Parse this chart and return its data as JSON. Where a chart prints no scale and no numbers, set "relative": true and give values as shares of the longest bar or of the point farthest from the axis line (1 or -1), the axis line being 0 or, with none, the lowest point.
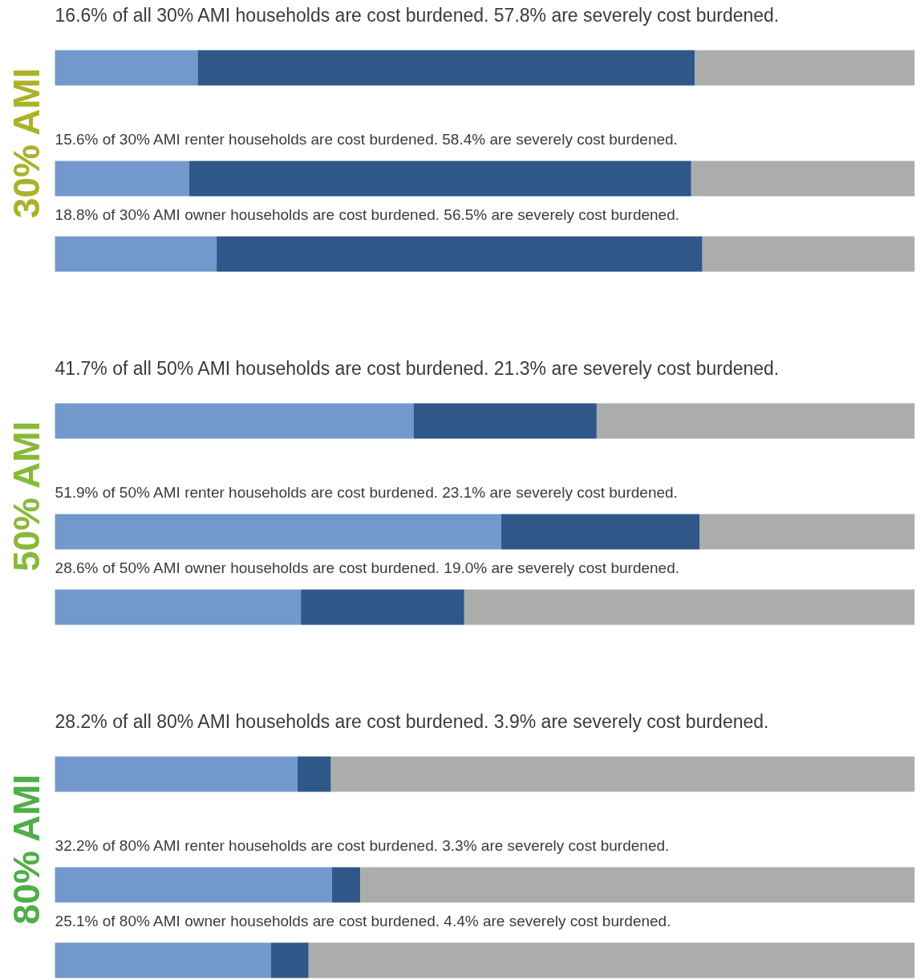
{
  "chart_data": {
    "type": "bar",
    "orientation": "horizontal",
    "stacked": true,
    "relative": true,
    "categories": [
      null,
      null,
      null,
      null,
      null,
      null,
      null,
      null,
      null
    ],
    "series": [
      {
        "color": "#7399cc",
        "values": [
          0.166,
          0.156,
          0.188,
          0.417,
          0.519,
          0.286,
          0.282,
          0.322,
          0.251
        ]
      },
      {
        "color": "#2f5788",
        "values": [
          0.578,
          0.584,
          0.565,
          0.213,
          0.231,
          0.19,
          0.039,
          0.033,
          0.044
        ]
      },
      {
        "color": "#abacac",
        "values": [
          0.256,
          0.26,
          0.247,
          0.37,
          0.25,
          0.524,
          0.679,
          0.645,
          0.705
        ]
      }
    ],
    "annotations": [
      "16.6% of all 30% AMI households are cost burdened. 57.8% are severely cost burdened.",
      "15.6% of 30% AMI  renter households are cost burdened. 58.4% are severely cost burdened.",
      "18.8% of 30% AMI owner households are cost burdened. 56.5% are severely cost burdened.",
      "41.7% of all 50% AMI households are cost burdened. 21.3% are severely cost burdened.",
      "51.9% of 50% AMI  renter households are cost burdened. 23.1% are severely cost burdened.",
      "28.6% of 50% AMI owner households are cost burdened. 19.0% are severely cost burdened.",
      "28.2% of all 80% AMI households are cost burdened. 3.9% are severely cost burdened.",
      "32.2% of 80% AMI  renter households are cost burdened. 3.3% are severely cost burdened.",
      "25.1% of 80% AMI owner households are cost burdened. 4.4% are severely cost burdened.",
      "30% AMI",
      "50% AMI",
      "80% AMI"
    ]
  }
}
